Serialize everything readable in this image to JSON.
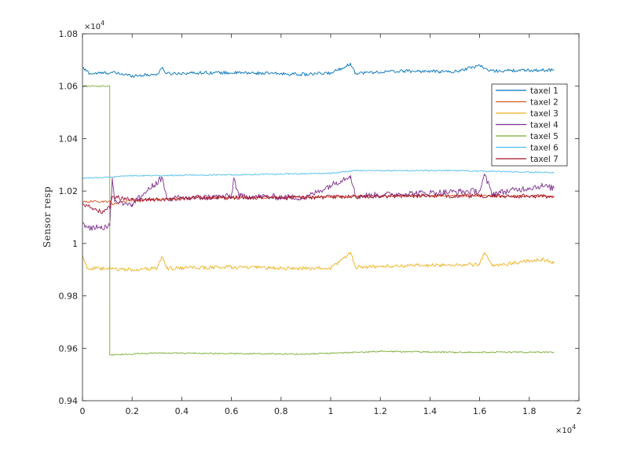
{
  "chart_data": {
    "type": "line",
    "title": "",
    "xlabel": "",
    "ylabel": "Sensor resp",
    "x_multiplier_label": "×10^4",
    "y_multiplier_label": "×10^4",
    "xlim": [
      0,
      20000
    ],
    "ylim": [
      9400,
      10800
    ],
    "x_ticks": [
      0,
      2000,
      4000,
      6000,
      8000,
      10000,
      12000,
      14000,
      16000,
      18000,
      20000
    ],
    "x_tick_labels": [
      "0",
      "0.2",
      "0.4",
      "0.6",
      "0.8",
      "1",
      "1.2",
      "1.4",
      "1.6",
      "1.8",
      "2"
    ],
    "y_ticks": [
      9400,
      9600,
      9800,
      10000,
      10200,
      10400,
      10600,
      10800
    ],
    "y_tick_labels": [
      "0.94",
      "0.96",
      "0.98",
      "1",
      "1.02",
      "1.04",
      "1.06",
      "1.08"
    ],
    "grid": false,
    "legend_position": "top-right",
    "x_end": 19000,
    "series": [
      {
        "name": "taxel 1",
        "color": "#0072BD",
        "points": [
          [
            0,
            10670
          ],
          [
            300,
            10648
          ],
          [
            1200,
            10652
          ],
          [
            2000,
            10640
          ],
          [
            3000,
            10645
          ],
          [
            3200,
            10670
          ],
          [
            3400,
            10648
          ],
          [
            5000,
            10652
          ],
          [
            7000,
            10650
          ],
          [
            9000,
            10645
          ],
          [
            10000,
            10650
          ],
          [
            10800,
            10685
          ],
          [
            11000,
            10650
          ],
          [
            13000,
            10658
          ],
          [
            15000,
            10655
          ],
          [
            16000,
            10680
          ],
          [
            16400,
            10658
          ],
          [
            19000,
            10662
          ]
        ],
        "noise": 6
      },
      {
        "name": "taxel 2",
        "color": "#D95319",
        "points": [
          [
            0,
            10160
          ],
          [
            1100,
            10160
          ],
          [
            1200,
            10150
          ],
          [
            2000,
            10165
          ],
          [
            5000,
            10175
          ],
          [
            8000,
            10175
          ],
          [
            11000,
            10180
          ],
          [
            14000,
            10182
          ],
          [
            19000,
            10180
          ]
        ],
        "noise": 4
      },
      {
        "name": "taxel 3",
        "color": "#EDB120",
        "points": [
          [
            0,
            9955
          ],
          [
            200,
            9905
          ],
          [
            2000,
            9900
          ],
          [
            3000,
            9905
          ],
          [
            3200,
            9950
          ],
          [
            3400,
            9905
          ],
          [
            6000,
            9910
          ],
          [
            8000,
            9905
          ],
          [
            10000,
            9905
          ],
          [
            10800,
            9965
          ],
          [
            11000,
            9910
          ],
          [
            13000,
            9915
          ],
          [
            16000,
            9920
          ],
          [
            16200,
            9965
          ],
          [
            16500,
            9915
          ],
          [
            18500,
            9940
          ],
          [
            19000,
            9925
          ]
        ],
        "noise": 7
      },
      {
        "name": "taxel 4",
        "color": "#7E2F8E",
        "points": [
          [
            0,
            10080
          ],
          [
            100,
            10060
          ],
          [
            1100,
            10065
          ],
          [
            1200,
            10250
          ],
          [
            1300,
            10160
          ],
          [
            2000,
            10150
          ],
          [
            3200,
            10250
          ],
          [
            3400,
            10170
          ],
          [
            6000,
            10180
          ],
          [
            6100,
            10250
          ],
          [
            6300,
            10180
          ],
          [
            9000,
            10175
          ],
          [
            10800,
            10260
          ],
          [
            11000,
            10180
          ],
          [
            13000,
            10190
          ],
          [
            16000,
            10200
          ],
          [
            16200,
            10260
          ],
          [
            16500,
            10190
          ],
          [
            18500,
            10220
          ],
          [
            19000,
            10210
          ]
        ],
        "noise": 12
      },
      {
        "name": "taxel 5",
        "color": "#77AC30",
        "points": [
          [
            0,
            10600
          ],
          [
            1099,
            10600
          ],
          [
            1100,
            9575
          ],
          [
            3000,
            9582
          ],
          [
            6000,
            9580
          ],
          [
            9000,
            9578
          ],
          [
            12000,
            9588
          ],
          [
            15000,
            9585
          ],
          [
            19000,
            9585
          ]
        ],
        "noise": 2.5
      },
      {
        "name": "taxel 6",
        "color": "#4DBEEE",
        "points": [
          [
            0,
            10248
          ],
          [
            2000,
            10258
          ],
          [
            6000,
            10262
          ],
          [
            10000,
            10268
          ],
          [
            11000,
            10278
          ],
          [
            15000,
            10278
          ],
          [
            19000,
            10270
          ]
        ],
        "noise": 2.5
      },
      {
        "name": "taxel 7",
        "color": "#A2142F",
        "points": [
          [
            0,
            10150
          ],
          [
            800,
            10120
          ],
          [
            1100,
            10140
          ],
          [
            1200,
            10180
          ],
          [
            2000,
            10165
          ],
          [
            5000,
            10175
          ],
          [
            9000,
            10175
          ],
          [
            13000,
            10182
          ],
          [
            19000,
            10180
          ]
        ],
        "noise": 8
      }
    ]
  }
}
